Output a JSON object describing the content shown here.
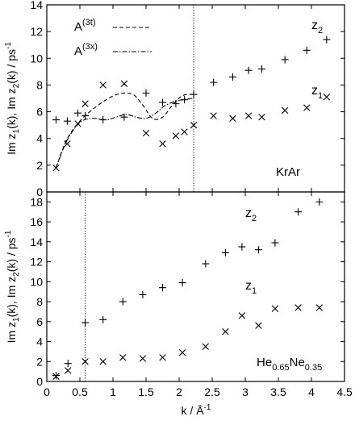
{
  "chart_data": [
    {
      "type": "scatter",
      "panel_label": "KrAr",
      "xlim": [
        0,
        4.5
      ],
      "ylim": [
        0,
        14
      ],
      "y_ticks": [
        0,
        2,
        4,
        6,
        8,
        10,
        12,
        14
      ],
      "ylabel": {
        "part1": "Im z",
        "sub1": "1",
        "part2": "(k), Im z",
        "sub2": "2",
        "part3": "(k) / ps",
        "sup": "-1"
      },
      "vline_x": 2.22,
      "series": [
        {
          "name": "z2",
          "label_main": "z",
          "label_sub": "2",
          "label_at": [
            4.0,
            12.2
          ],
          "marker": "plus",
          "x": [
            0.14,
            0.31,
            0.47,
            0.58,
            0.85,
            1.17,
            1.5,
            1.75,
            1.95,
            2.08,
            2.22,
            2.52,
            2.81,
            3.05,
            3.25,
            3.6,
            3.93,
            4.23
          ],
          "values": [
            5.4,
            5.3,
            5.9,
            5.7,
            5.4,
            5.6,
            7.4,
            6.7,
            6.6,
            6.9,
            7.3,
            8.2,
            8.6,
            9.1,
            9.2,
            9.9,
            10.6,
            11.4
          ]
        },
        {
          "name": "z1",
          "label_main": "z",
          "label_sub": "1",
          "label_at": [
            4.0,
            7.3
          ],
          "marker": "cross",
          "x": [
            0.14,
            0.31,
            0.47,
            0.58,
            0.85,
            1.17,
            1.5,
            1.75,
            1.95,
            2.08,
            2.22,
            2.52,
            2.81,
            3.05,
            3.25,
            3.6,
            3.93,
            4.23
          ],
          "values": [
            1.8,
            3.6,
            5.1,
            6.6,
            8.0,
            8.1,
            4.4,
            3.6,
            4.2,
            4.5,
            5.0,
            5.7,
            5.5,
            5.7,
            5.6,
            6.1,
            6.3,
            7.1
          ]
        }
      ],
      "curves": [
        {
          "name_main": "A",
          "name_sup": "(3t)",
          "dash": "5,3",
          "x": [
            0.14,
            0.3,
            0.5,
            0.7,
            0.9,
            1.1,
            1.3,
            1.45,
            1.6,
            1.75,
            1.9,
            2.05,
            2.2
          ],
          "values": [
            1.8,
            3.9,
            5.3,
            6.2,
            6.9,
            7.35,
            7.3,
            6.5,
            5.5,
            5.6,
            6.5,
            7.2,
            7.3
          ]
        },
        {
          "name_main": "A",
          "name_sup": "(3x)",
          "dash": "6,2,1.5,2",
          "x": [
            0.14,
            0.3,
            0.5,
            0.7,
            0.9,
            1.05,
            1.2,
            1.35,
            1.5,
            1.65,
            1.8,
            2.0,
            2.2
          ],
          "values": [
            1.8,
            3.8,
            5.2,
            5.5,
            5.4,
            5.6,
            5.8,
            5.6,
            5.5,
            5.9,
            6.5,
            6.85,
            7.0
          ]
        }
      ]
    },
    {
      "type": "scatter",
      "panel_label_main": "He",
      "panel_label_sub1": "0.65",
      "panel_label_mid": "Ne",
      "panel_label_sub2": "0.35",
      "xlim": [
        0,
        4.5
      ],
      "ylim": [
        0,
        19
      ],
      "y_ticks": [
        0,
        2,
        4,
        6,
        8,
        10,
        12,
        14,
        16,
        18
      ],
      "x_ticks": [
        0,
        0.5,
        1,
        1.5,
        2,
        2.5,
        3,
        3.5,
        4,
        4.5
      ],
      "x_tick_labels": [
        "0",
        "0.5",
        "1",
        "1.5",
        "2",
        "2.5",
        "3",
        "3.5",
        "4",
        "4.5"
      ],
      "xlabel": {
        "main": "k / Å",
        "sup": "-1"
      },
      "ylabel": {
        "part1": "Im z",
        "sub1": "1",
        "part2": "(k), Im z",
        "sub2": "2",
        "part3": "(k) / ps",
        "sup": "-1"
      },
      "vline_x": 0.58,
      "series": [
        {
          "name": "z2",
          "label_main": "z",
          "label_sub": "2",
          "label_at": [
            3.0,
            16.5
          ],
          "marker": "plus",
          "x": [
            0.14,
            0.32,
            0.58,
            0.85,
            1.15,
            1.45,
            1.75,
            2.05,
            2.4,
            2.7,
            2.95,
            3.2,
            3.45,
            3.8,
            4.12
          ],
          "values": [
            0.6,
            1.8,
            5.9,
            6.2,
            8.0,
            8.7,
            9.4,
            9.9,
            11.8,
            12.9,
            13.5,
            13.2,
            13.9,
            17.0,
            18.0
          ]
        },
        {
          "name": "z1",
          "label_main": "z",
          "label_sub": "1",
          "label_at": [
            3.0,
            9.2
          ],
          "marker": "cross",
          "x": [
            0.14,
            0.32,
            0.58,
            0.85,
            1.15,
            1.45,
            1.75,
            2.05,
            2.4,
            2.7,
            2.95,
            3.2,
            3.45,
            3.8,
            4.12
          ],
          "values": [
            0.5,
            1.1,
            2.0,
            2.0,
            2.4,
            2.3,
            2.4,
            2.9,
            3.5,
            5.0,
            6.6,
            5.6,
            7.3,
            7.4,
            7.4
          ]
        }
      ]
    }
  ]
}
